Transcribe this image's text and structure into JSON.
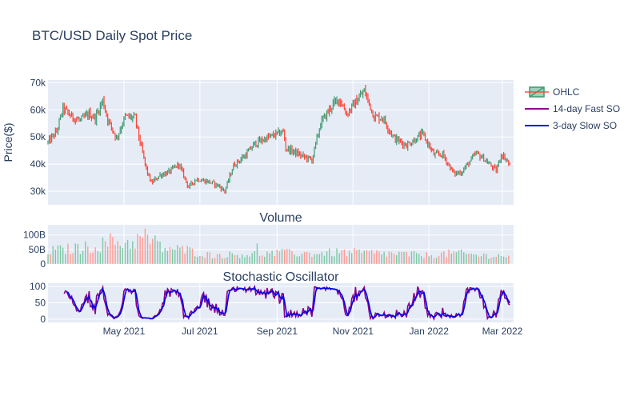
{
  "chart_data": {
    "type": "candlestick-with-subplots",
    "title": "BTC/USD Daily Spot Price",
    "x_range": [
      "2021-03-01",
      "2022-03-10"
    ],
    "x_ticks": [
      {
        "date": "2021-05-01",
        "label": "May 2021"
      },
      {
        "date": "2021-07-01",
        "label": "Jul 2021"
      },
      {
        "date": "2021-09-01",
        "label": "Sep 2021"
      },
      {
        "date": "2021-11-01",
        "label": "Nov 2021"
      },
      {
        "date": "2022-01-01",
        "label": "Jan 2022"
      },
      {
        "date": "2022-03-01",
        "label": "Mar 2022"
      }
    ],
    "legend": {
      "placement": "top-right",
      "items": [
        {
          "name": "OHLC",
          "kind": "candle",
          "color": "#3d9970"
        },
        {
          "name": "14-day Fast SO",
          "kind": "line",
          "color": "#8b008b"
        },
        {
          "name": "3-day Slow SO",
          "kind": "line",
          "color": "#0000ee"
        }
      ]
    },
    "colors": {
      "increasing": "#3d9970",
      "decreasing": "#ff4136",
      "panel_bg": "#e5ecf6",
      "grid": "#ffffff"
    },
    "price_panel": {
      "ylabel": "Price($)",
      "ylim": [
        25000,
        71000
      ],
      "y_ticks": [
        {
          "v": 30000,
          "label": "30k"
        },
        {
          "v": 40000,
          "label": "40k"
        },
        {
          "v": 50000,
          "label": "50k"
        },
        {
          "v": 60000,
          "label": "60k"
        },
        {
          "v": 70000,
          "label": "70k"
        }
      ],
      "close_anchors": [
        [
          "2021-03-01",
          48000
        ],
        [
          "2021-03-08",
          52000
        ],
        [
          "2021-03-13",
          60500
        ],
        [
          "2021-03-20",
          57500
        ],
        [
          "2021-03-27",
          56000
        ],
        [
          "2021-04-03",
          58500
        ],
        [
          "2021-04-08",
          57000
        ],
        [
          "2021-04-14",
          63500
        ],
        [
          "2021-04-18",
          56500
        ],
        [
          "2021-04-25",
          49500
        ],
        [
          "2021-05-02",
          57500
        ],
        [
          "2021-05-10",
          57000
        ],
        [
          "2021-05-13",
          50000
        ],
        [
          "2021-05-19",
          38000
        ],
        [
          "2021-05-23",
          33000
        ],
        [
          "2021-05-30",
          36000
        ],
        [
          "2021-06-06",
          37000
        ],
        [
          "2021-06-14",
          40000
        ],
        [
          "2021-06-22",
          31500
        ],
        [
          "2021-06-28",
          34500
        ],
        [
          "2021-07-08",
          33500
        ],
        [
          "2021-07-16",
          32000
        ],
        [
          "2021-07-21",
          30000
        ],
        [
          "2021-07-28",
          39500
        ],
        [
          "2021-08-07",
          43500
        ],
        [
          "2021-08-14",
          47500
        ],
        [
          "2021-08-23",
          49500
        ],
        [
          "2021-09-06",
          52000
        ],
        [
          "2021-09-08",
          46000
        ],
        [
          "2021-09-21",
          43000
        ],
        [
          "2021-09-29",
          41500
        ],
        [
          "2021-10-06",
          55000
        ],
        [
          "2021-10-15",
          61500
        ],
        [
          "2021-10-21",
          64000
        ],
        [
          "2021-10-27",
          58500
        ],
        [
          "2021-11-10",
          67000
        ],
        [
          "2021-11-18",
          57500
        ],
        [
          "2021-11-25",
          57000
        ],
        [
          "2021-12-04",
          49500
        ],
        [
          "2021-12-14",
          47000
        ],
        [
          "2021-12-27",
          51000
        ],
        [
          "2022-01-05",
          43500
        ],
        [
          "2022-01-12",
          43500
        ],
        [
          "2022-01-21",
          36500
        ],
        [
          "2022-01-27",
          37000
        ],
        [
          "2022-02-08",
          44000
        ],
        [
          "2022-02-14",
          42000
        ],
        [
          "2022-02-24",
          37500
        ],
        [
          "2022-02-28",
          43500
        ],
        [
          "2022-03-03",
          42500
        ],
        [
          "2022-03-07",
          39500
        ]
      ]
    },
    "volume_panel": {
      "title": "Volume",
      "ylim": [
        0,
        135
      ],
      "y_unit": "B",
      "y_ticks": [
        {
          "v": 0,
          "label": "0"
        },
        {
          "v": 50,
          "label": "50B"
        },
        {
          "v": 100,
          "label": "100B"
        }
      ],
      "level_anchors": [
        [
          "2021-03-01",
          45
        ],
        [
          "2021-03-20",
          52
        ],
        [
          "2021-04-10",
          62
        ],
        [
          "2021-04-20",
          78
        ],
        [
          "2021-05-05",
          72
        ],
        [
          "2021-05-19",
          95
        ],
        [
          "2021-06-01",
          55
        ],
        [
          "2021-06-20",
          48
        ],
        [
          "2021-07-10",
          30
        ],
        [
          "2021-08-01",
          33
        ],
        [
          "2021-08-20",
          35
        ],
        [
          "2021-09-10",
          38
        ],
        [
          "2021-10-01",
          36
        ],
        [
          "2021-10-20",
          40
        ],
        [
          "2021-11-15",
          38
        ],
        [
          "2021-12-05",
          35
        ],
        [
          "2022-01-01",
          30
        ],
        [
          "2022-01-22",
          38
        ],
        [
          "2022-02-10",
          30
        ],
        [
          "2022-03-07",
          28
        ]
      ]
    },
    "so_panel": {
      "title": "Stochastic Oscillator",
      "ylim": [
        -10,
        110
      ],
      "y_ticks": [
        {
          "v": 0,
          "label": "0"
        },
        {
          "v": 50,
          "label": "50"
        },
        {
          "v": 100,
          "label": "100"
        }
      ],
      "fast_period": 14,
      "slow_period": 3
    }
  }
}
